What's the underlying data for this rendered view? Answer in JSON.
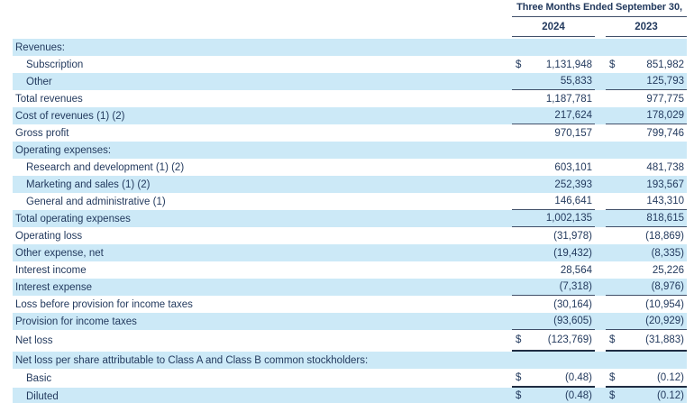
{
  "colors": {
    "text_navy": "#233a5e",
    "row_stripe_blue": "#cce9f7",
    "rule_dark": "#41506a",
    "rule_heavy": "#1f2c42",
    "background": "#ffffff"
  },
  "header": {
    "period_label": "Three Months Ended September 30,",
    "columns": [
      "2024",
      "2023"
    ]
  },
  "table": {
    "currency_symbol": "$",
    "rows": [
      {
        "label": "Revenues:",
        "indent": 0,
        "shaded": true,
        "dollar": false,
        "values": [
          "",
          ""
        ],
        "rule": "none"
      },
      {
        "label": "Subscription",
        "indent": 1,
        "shaded": false,
        "dollar": true,
        "values": [
          "1,131,948",
          "851,982"
        ],
        "rule": "none"
      },
      {
        "label": "Other",
        "indent": 1,
        "shaded": true,
        "dollar": false,
        "values": [
          "55,833",
          "125,793"
        ],
        "rule": "single"
      },
      {
        "label": "Total revenues",
        "indent": 0,
        "shaded": false,
        "dollar": false,
        "values": [
          "1,187,781",
          "977,775"
        ],
        "rule": "none"
      },
      {
        "label": "Cost of revenues (1) (2)",
        "indent": 0,
        "shaded": true,
        "dollar": false,
        "values": [
          "217,624",
          "178,029"
        ],
        "rule": "single"
      },
      {
        "label": "Gross profit",
        "indent": 0,
        "shaded": false,
        "dollar": false,
        "values": [
          "970,157",
          "799,746"
        ],
        "rule": "none"
      },
      {
        "label": "Operating expenses:",
        "indent": 0,
        "shaded": true,
        "dollar": false,
        "values": [
          "",
          ""
        ],
        "rule": "none"
      },
      {
        "label": "Research and development (1) (2)",
        "indent": 1,
        "shaded": false,
        "dollar": false,
        "values": [
          "603,101",
          "481,738"
        ],
        "rule": "none"
      },
      {
        "label": "Marketing and sales (1) (2)",
        "indent": 1,
        "shaded": true,
        "dollar": false,
        "values": [
          "252,393",
          "193,567"
        ],
        "rule": "none"
      },
      {
        "label": "General and administrative (1)",
        "indent": 1,
        "shaded": false,
        "dollar": false,
        "values": [
          "146,641",
          "143,310"
        ],
        "rule": "single"
      },
      {
        "label": "Total operating expenses",
        "indent": 0,
        "shaded": true,
        "dollar": false,
        "values": [
          "1,002,135",
          "818,615"
        ],
        "rule": "single"
      },
      {
        "label": "Operating loss",
        "indent": 0,
        "shaded": false,
        "dollar": false,
        "values": [
          "(31,978)",
          "(18,869)"
        ],
        "rule": "none"
      },
      {
        "label": "Other expense, net",
        "indent": 0,
        "shaded": true,
        "dollar": false,
        "values": [
          "(19,432)",
          "(8,335)"
        ],
        "rule": "none"
      },
      {
        "label": "Interest income",
        "indent": 0,
        "shaded": false,
        "dollar": false,
        "values": [
          "28,564",
          "25,226"
        ],
        "rule": "none"
      },
      {
        "label": "Interest expense",
        "indent": 0,
        "shaded": true,
        "dollar": false,
        "values": [
          "(7,318)",
          "(8,976)"
        ],
        "rule": "single"
      },
      {
        "label": "Loss before provision for income taxes",
        "indent": 0,
        "shaded": false,
        "dollar": false,
        "values": [
          "(30,164)",
          "(10,954)"
        ],
        "rule": "none"
      },
      {
        "label": "Provision for income taxes",
        "indent": 0,
        "shaded": true,
        "dollar": false,
        "values": [
          "(93,605)",
          "(20,929)"
        ],
        "rule": "single"
      },
      {
        "label": "Net loss",
        "indent": 0,
        "shaded": false,
        "dollar": true,
        "values": [
          "(123,769)",
          "(31,883)"
        ],
        "rule": "double",
        "height": 24
      },
      {
        "label": "Net loss per share attributable to Class A and Class B common stockholders:",
        "indent": 0,
        "shaded": true,
        "dollar": false,
        "values": [
          "",
          ""
        ],
        "rule": "none"
      },
      {
        "label": "Basic",
        "indent": 1,
        "shaded": false,
        "dollar": true,
        "values": [
          "(0.48)",
          "(0.12)"
        ],
        "rule": "double",
        "height": 21
      },
      {
        "label": "Diluted",
        "indent": 1,
        "shaded": true,
        "dollar": true,
        "values": [
          "(0.48)",
          "(0.12)"
        ],
        "rule": "double"
      }
    ]
  }
}
